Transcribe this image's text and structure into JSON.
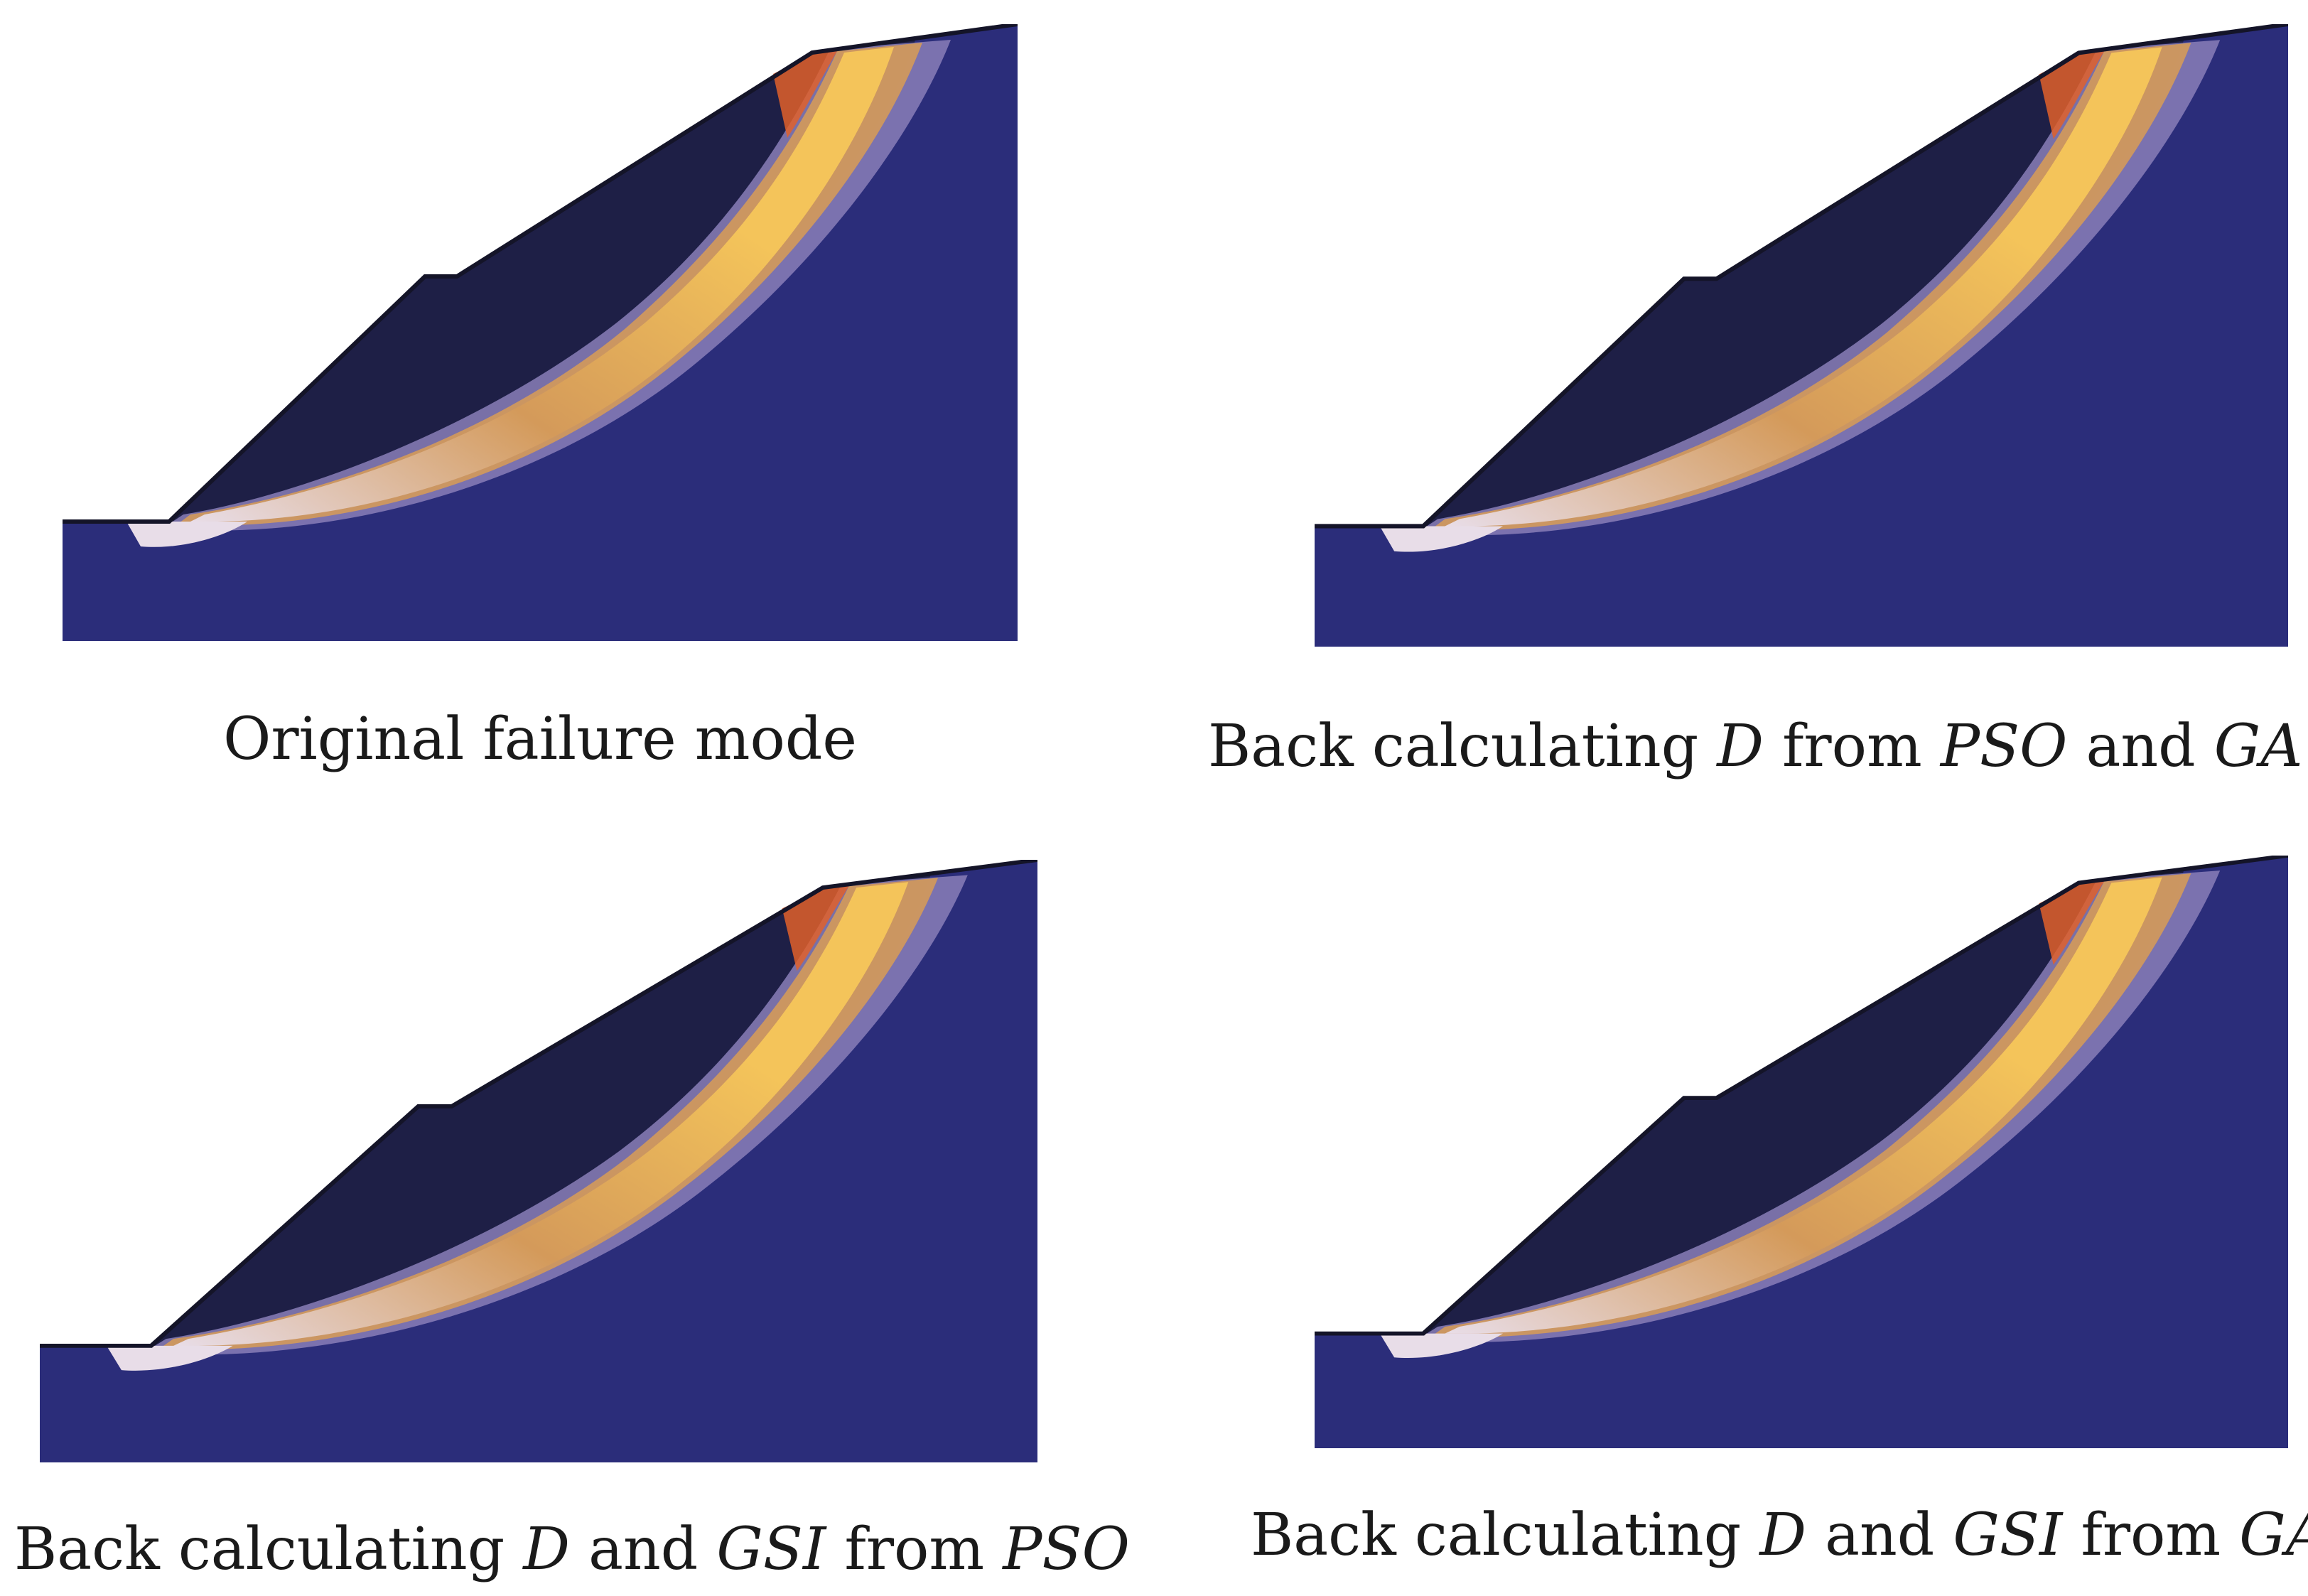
{
  "panels": [
    {
      "id": "original",
      "caption": [
        {
          "text": "Original failure mode",
          "italic": false
        }
      ]
    },
    {
      "id": "d-pso-ga",
      "caption": [
        {
          "text": "Back calculating ",
          "italic": false
        },
        {
          "text": "D",
          "italic": true
        },
        {
          "text": " from ",
          "italic": false
        },
        {
          "text": "PSO",
          "italic": true
        },
        {
          "text": " and ",
          "italic": false
        },
        {
          "text": "GA",
          "italic": true
        }
      ]
    },
    {
      "id": "d-gsi-pso",
      "caption": [
        {
          "text": "Back calculating ",
          "italic": false
        },
        {
          "text": "D",
          "italic": true
        },
        {
          "text": " and ",
          "italic": false
        },
        {
          "text": "GSI",
          "italic": true
        },
        {
          "text": " from ",
          "italic": false
        },
        {
          "text": "PSO",
          "italic": true
        }
      ]
    },
    {
      "id": "d-gsi-ga",
      "caption": [
        {
          "text": "Back calculating ",
          "italic": false
        },
        {
          "text": "D",
          "italic": true
        },
        {
          "text": " and ",
          "italic": false
        },
        {
          "text": "GSI",
          "italic": true
        },
        {
          "text": " from ",
          "italic": false
        },
        {
          "text": "GA",
          "italic": true
        }
      ]
    }
  ],
  "colors": {
    "rock_mass": "#2b2d7a",
    "slope_surface": "#1c1c3a",
    "shear_band_outer": "#8a7fb8",
    "shear_band_mid": "#d49a5a",
    "shear_band_core": "#f4c45a",
    "toe_zone": "#e8dde8",
    "crest_edge": "#e0602a"
  }
}
